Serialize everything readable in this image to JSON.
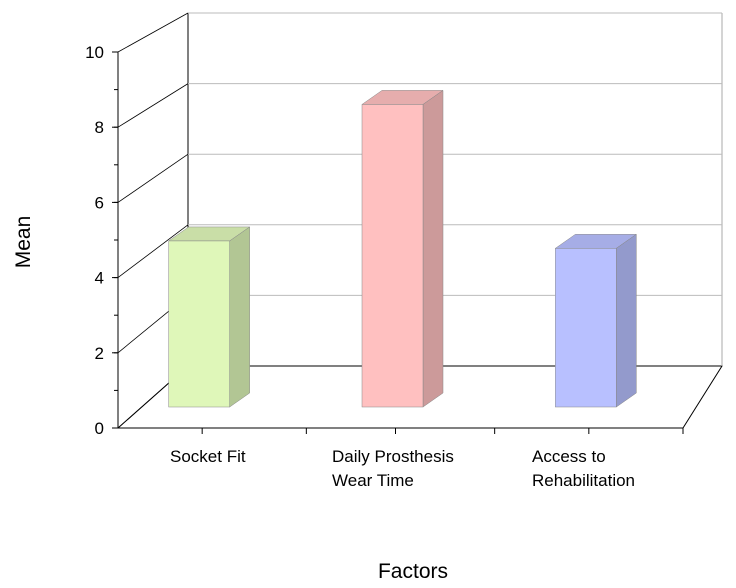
{
  "chart_data": {
    "type": "bar3d",
    "x_label": "Factors",
    "y_label": "Mean",
    "categories": [
      "Socket Fit",
      "Daily Prosthesis\nWear Time",
      "Access to\nRehabilitation"
    ],
    "values": [
      4.5,
      8.2,
      4.3
    ],
    "colors": [
      "#dff7b9",
      "#ffc0c0",
      "#b8c0ff"
    ],
    "ylim": [
      0,
      10
    ],
    "yticks": [
      0,
      2,
      4,
      6,
      8,
      10
    ],
    "grid": true
  }
}
